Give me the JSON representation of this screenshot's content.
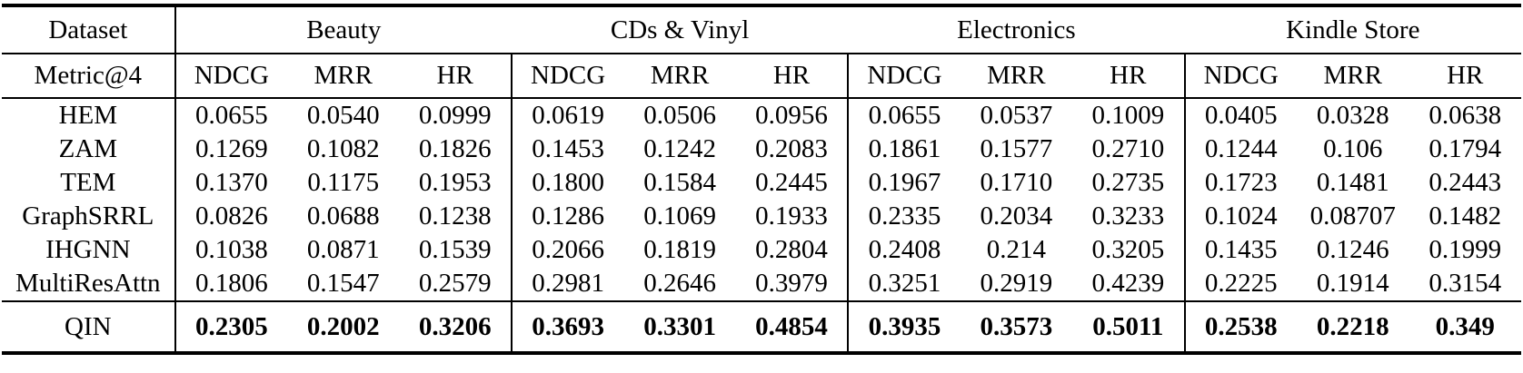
{
  "table": {
    "corner_label": "Dataset",
    "metric_label": "Metric@4",
    "metrics": [
      "NDCG",
      "MRR",
      "HR"
    ],
    "groups": [
      {
        "label": "Beauty"
      },
      {
        "label": "CDs & Vinyl"
      },
      {
        "label": "Electronics"
      },
      {
        "label": "Kindle Store"
      }
    ],
    "rows": [
      {
        "name": "HEM",
        "values": [
          "0.0655",
          "0.0540",
          "0.0999",
          "0.0619",
          "0.0506",
          "0.0956",
          "0.0655",
          "0.0537",
          "0.1009",
          "0.0405",
          "0.0328",
          "0.0638"
        ]
      },
      {
        "name": "ZAM",
        "values": [
          "0.1269",
          "0.1082",
          "0.1826",
          "0.1453",
          "0.1242",
          "0.2083",
          "0.1861",
          "0.1577",
          "0.2710",
          "0.1244",
          "0.106",
          "0.1794"
        ]
      },
      {
        "name": "TEM",
        "values": [
          "0.1370",
          "0.1175",
          "0.1953",
          "0.1800",
          "0.1584",
          "0.2445",
          "0.1967",
          "0.1710",
          "0.2735",
          "0.1723",
          "0.1481",
          "0.2443"
        ]
      },
      {
        "name": "GraphSRRL",
        "values": [
          "0.0826",
          "0.0688",
          "0.1238",
          "0.1286",
          "0.1069",
          "0.1933",
          "0.2335",
          "0.2034",
          "0.3233",
          "0.1024",
          "0.08707",
          "0.1482"
        ]
      },
      {
        "name": "IHGNN",
        "values": [
          "0.1038",
          "0.0871",
          "0.1539",
          "0.2066",
          "0.1819",
          "0.2804",
          "0.2408",
          "0.214",
          "0.3205",
          "0.1435",
          "0.1246",
          "0.1999"
        ]
      },
      {
        "name": "MultiResAttn",
        "values": [
          "0.1806",
          "0.1547",
          "0.2579",
          "0.2981",
          "0.2646",
          "0.3979",
          "0.3251",
          "0.2919",
          "0.4239",
          "0.2225",
          "0.1914",
          "0.3154"
        ]
      }
    ],
    "highlight_row": {
      "name": "QIN",
      "values": [
        "0.2305",
        "0.2002",
        "0.3206",
        "0.3693",
        "0.3301",
        "0.4854",
        "0.3935",
        "0.3573",
        "0.5011",
        "0.2538",
        "0.2218",
        "0.349"
      ]
    }
  }
}
